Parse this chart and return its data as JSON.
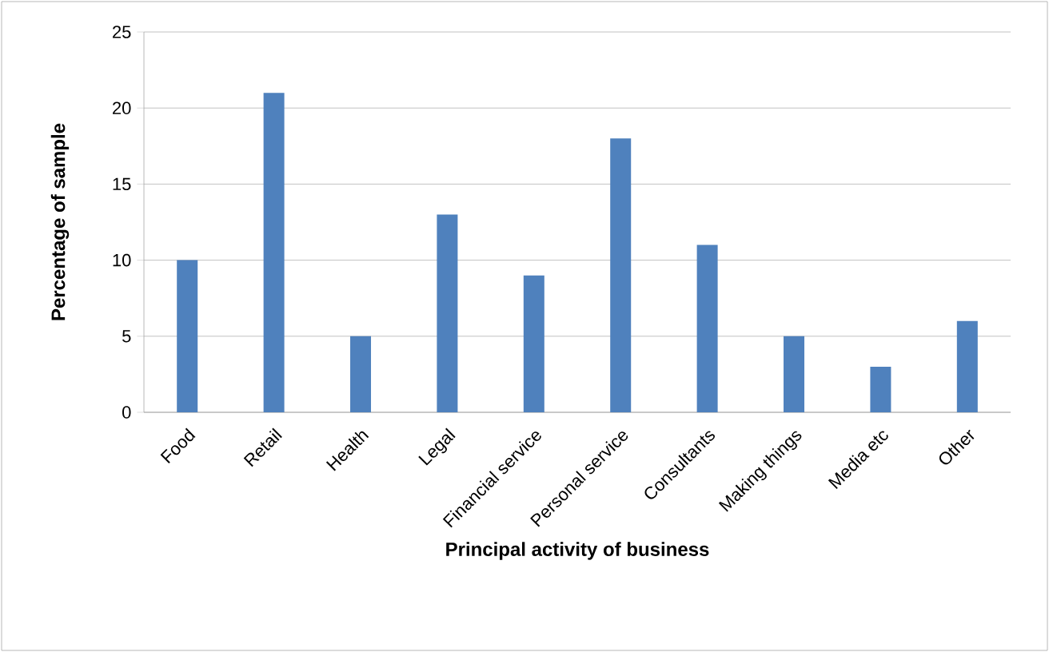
{
  "chart_data": {
    "type": "bar",
    "xlabel": "Principal activity of business",
    "ylabel": "Percentage of sample",
    "categories": [
      "Food",
      "Retail",
      "Health",
      "Legal",
      "Financial service",
      "Personal service",
      "Consultants",
      "Making things",
      "Media etc",
      "Other"
    ],
    "values": [
      10,
      21,
      5,
      13,
      9,
      18,
      11,
      5,
      3,
      6
    ],
    "color": "#4f81bd",
    "ylim": [
      0,
      25
    ],
    "yticks": [
      0,
      5,
      10,
      15,
      20,
      25
    ],
    "grid": "y"
  }
}
